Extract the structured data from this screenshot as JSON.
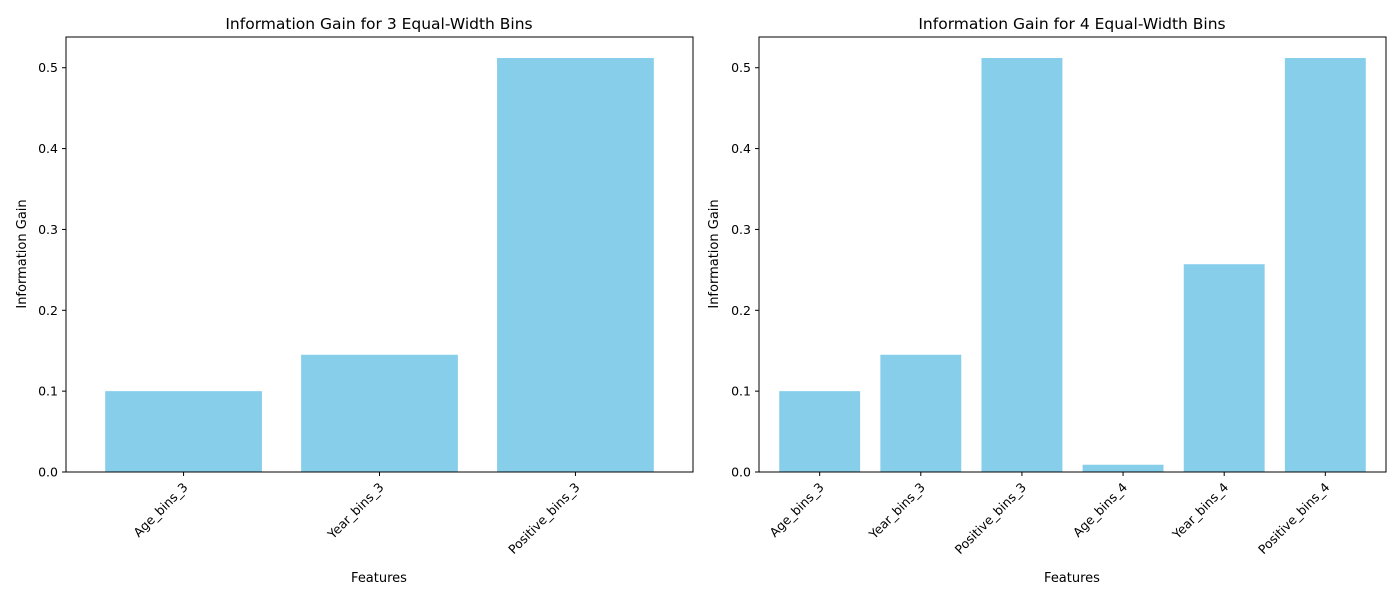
{
  "chart_data": [
    {
      "type": "bar",
      "title": "Information Gain for 3 Equal-Width Bins",
      "xlabel": "Features",
      "ylabel": "Information Gain",
      "categories": [
        "Age_bins_3",
        "Year_bins_3",
        "Positive_bins_3"
      ],
      "values": [
        0.1,
        0.145,
        0.512
      ],
      "ylim": [
        0,
        0.538
      ],
      "yticks": [
        "0.0",
        "0.1",
        "0.2",
        "0.3",
        "0.4",
        "0.5"
      ],
      "bar_color": "#87CEEB",
      "grid": false
    },
    {
      "type": "bar",
      "title": "Information Gain for 4 Equal-Width Bins",
      "xlabel": "Features",
      "ylabel": "Information Gain",
      "categories": [
        "Age_bins_3",
        "Year_bins_3",
        "Positive_bins_3",
        "Age_bins_4",
        "Year_bins_4",
        "Positive_bins_4"
      ],
      "values": [
        0.1,
        0.145,
        0.512,
        0.009,
        0.257,
        0.512
      ],
      "ylim": [
        0,
        0.538
      ],
      "yticks": [
        "0.0",
        "0.1",
        "0.2",
        "0.3",
        "0.4",
        "0.5"
      ],
      "bar_color": "#87CEEB",
      "grid": false
    }
  ]
}
